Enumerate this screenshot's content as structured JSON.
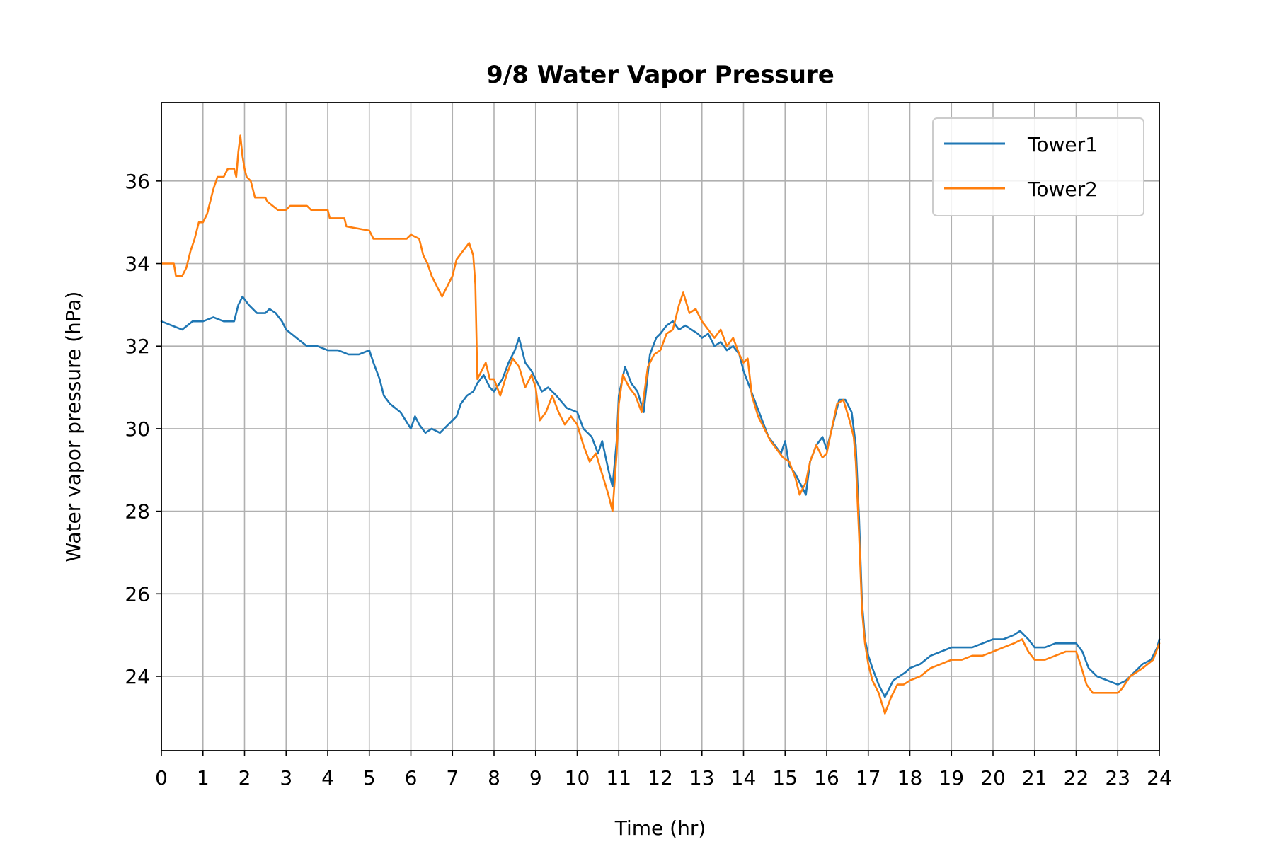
{
  "chart_data": {
    "type": "line",
    "title": "9/8 Water Vapor Pressure",
    "xlabel": "Time (hr)",
    "ylabel": "Water vapor pressure (hPa)",
    "xlim": [
      0,
      24
    ],
    "ylim": [
      22.2,
      37.9
    ],
    "xticks": [
      "0",
      "1",
      "2",
      "3",
      "4",
      "5",
      "6",
      "7",
      "8",
      "9",
      "10",
      "11",
      "12",
      "13",
      "14",
      "15",
      "16",
      "17",
      "18",
      "19",
      "20",
      "21",
      "22",
      "23",
      "24"
    ],
    "yticks": [
      "24",
      "26",
      "28",
      "30",
      "32",
      "34",
      "36"
    ],
    "grid": true,
    "legend_position": "top-right",
    "series": [
      {
        "name": "Tower1",
        "color": "#1f77b4",
        "points": [
          [
            0.0,
            32.6
          ],
          [
            0.25,
            32.5
          ],
          [
            0.5,
            32.4
          ],
          [
            0.75,
            32.6
          ],
          [
            1.0,
            32.6
          ],
          [
            1.25,
            32.7
          ],
          [
            1.5,
            32.6
          ],
          [
            1.75,
            32.6
          ],
          [
            1.85,
            33.0
          ],
          [
            1.95,
            33.2
          ],
          [
            2.1,
            33.0
          ],
          [
            2.3,
            32.8
          ],
          [
            2.5,
            32.8
          ],
          [
            2.6,
            32.9
          ],
          [
            2.75,
            32.8
          ],
          [
            2.9,
            32.6
          ],
          [
            3.0,
            32.4
          ],
          [
            3.25,
            32.2
          ],
          [
            3.5,
            32.0
          ],
          [
            3.75,
            32.0
          ],
          [
            4.0,
            31.9
          ],
          [
            4.25,
            31.9
          ],
          [
            4.5,
            31.8
          ],
          [
            4.75,
            31.8
          ],
          [
            5.0,
            31.9
          ],
          [
            5.1,
            31.6
          ],
          [
            5.25,
            31.2
          ],
          [
            5.35,
            30.8
          ],
          [
            5.5,
            30.6
          ],
          [
            5.75,
            30.4
          ],
          [
            6.0,
            30.0
          ],
          [
            6.1,
            30.3
          ],
          [
            6.2,
            30.1
          ],
          [
            6.35,
            29.9
          ],
          [
            6.5,
            30.0
          ],
          [
            6.7,
            29.9
          ],
          [
            6.9,
            30.1
          ],
          [
            7.1,
            30.3
          ],
          [
            7.2,
            30.6
          ],
          [
            7.35,
            30.8
          ],
          [
            7.5,
            30.9
          ],
          [
            7.6,
            31.1
          ],
          [
            7.75,
            31.3
          ],
          [
            7.9,
            31.0
          ],
          [
            8.0,
            30.9
          ],
          [
            8.2,
            31.2
          ],
          [
            8.35,
            31.6
          ],
          [
            8.5,
            31.9
          ],
          [
            8.6,
            32.2
          ],
          [
            8.75,
            31.6
          ],
          [
            8.9,
            31.4
          ],
          [
            9.0,
            31.2
          ],
          [
            9.15,
            30.9
          ],
          [
            9.3,
            31.0
          ],
          [
            9.5,
            30.8
          ],
          [
            9.75,
            30.5
          ],
          [
            10.0,
            30.4
          ],
          [
            10.15,
            30.0
          ],
          [
            10.35,
            29.8
          ],
          [
            10.5,
            29.4
          ],
          [
            10.6,
            29.7
          ],
          [
            10.75,
            29.0
          ],
          [
            10.85,
            28.6
          ],
          [
            10.95,
            29.7
          ],
          [
            11.0,
            30.8
          ],
          [
            11.15,
            31.5
          ],
          [
            11.3,
            31.1
          ],
          [
            11.45,
            30.9
          ],
          [
            11.6,
            30.4
          ],
          [
            11.75,
            31.8
          ],
          [
            11.9,
            32.2
          ],
          [
            12.0,
            32.3
          ],
          [
            12.15,
            32.5
          ],
          [
            12.3,
            32.6
          ],
          [
            12.45,
            32.4
          ],
          [
            12.6,
            32.5
          ],
          [
            12.75,
            32.4
          ],
          [
            12.9,
            32.3
          ],
          [
            13.0,
            32.2
          ],
          [
            13.15,
            32.3
          ],
          [
            13.3,
            32.0
          ],
          [
            13.45,
            32.1
          ],
          [
            13.6,
            31.9
          ],
          [
            13.75,
            32.0
          ],
          [
            13.9,
            31.8
          ],
          [
            14.0,
            31.4
          ],
          [
            14.15,
            31.0
          ],
          [
            14.3,
            30.6
          ],
          [
            14.45,
            30.2
          ],
          [
            14.6,
            29.8
          ],
          [
            14.75,
            29.6
          ],
          [
            14.9,
            29.4
          ],
          [
            15.0,
            29.7
          ],
          [
            15.1,
            29.1
          ],
          [
            15.25,
            28.9
          ],
          [
            15.4,
            28.6
          ],
          [
            15.5,
            28.4
          ],
          [
            15.6,
            29.2
          ],
          [
            15.75,
            29.6
          ],
          [
            15.9,
            29.8
          ],
          [
            16.0,
            29.5
          ],
          [
            16.1,
            29.9
          ],
          [
            16.3,
            30.7
          ],
          [
            16.45,
            30.7
          ],
          [
            16.6,
            30.4
          ],
          [
            16.7,
            29.6
          ],
          [
            16.78,
            27.8
          ],
          [
            16.85,
            25.8
          ],
          [
            16.92,
            24.9
          ],
          [
            17.0,
            24.5
          ],
          [
            17.1,
            24.2
          ],
          [
            17.25,
            23.8
          ],
          [
            17.4,
            23.5
          ],
          [
            17.5,
            23.7
          ],
          [
            17.6,
            23.9
          ],
          [
            17.75,
            24.0
          ],
          [
            17.9,
            24.1
          ],
          [
            18.0,
            24.2
          ],
          [
            18.25,
            24.3
          ],
          [
            18.5,
            24.5
          ],
          [
            18.75,
            24.6
          ],
          [
            19.0,
            24.7
          ],
          [
            19.25,
            24.7
          ],
          [
            19.5,
            24.7
          ],
          [
            19.75,
            24.8
          ],
          [
            20.0,
            24.9
          ],
          [
            20.25,
            24.9
          ],
          [
            20.5,
            25.0
          ],
          [
            20.65,
            25.1
          ],
          [
            20.85,
            24.9
          ],
          [
            21.0,
            24.7
          ],
          [
            21.25,
            24.7
          ],
          [
            21.5,
            24.8
          ],
          [
            21.75,
            24.8
          ],
          [
            22.0,
            24.8
          ],
          [
            22.15,
            24.6
          ],
          [
            22.3,
            24.2
          ],
          [
            22.5,
            24.0
          ],
          [
            22.75,
            23.9
          ],
          [
            23.0,
            23.8
          ],
          [
            23.2,
            23.9
          ],
          [
            23.4,
            24.1
          ],
          [
            23.6,
            24.3
          ],
          [
            23.8,
            24.4
          ],
          [
            23.95,
            24.7
          ],
          [
            24.0,
            24.9
          ]
        ]
      },
      {
        "name": "Tower2",
        "color": "#ff7f0e",
        "points": [
          [
            0.0,
            34.0
          ],
          [
            0.3,
            34.0
          ],
          [
            0.35,
            33.7
          ],
          [
            0.5,
            33.7
          ],
          [
            0.6,
            33.9
          ],
          [
            0.7,
            34.3
          ],
          [
            0.8,
            34.6
          ],
          [
            0.9,
            35.0
          ],
          [
            1.0,
            35.0
          ],
          [
            1.1,
            35.2
          ],
          [
            1.25,
            35.8
          ],
          [
            1.35,
            36.1
          ],
          [
            1.5,
            36.1
          ],
          [
            1.6,
            36.3
          ],
          [
            1.75,
            36.3
          ],
          [
            1.8,
            36.1
          ],
          [
            1.85,
            36.7
          ],
          [
            1.9,
            37.1
          ],
          [
            1.95,
            36.6
          ],
          [
            2.0,
            36.3
          ],
          [
            2.05,
            36.1
          ],
          [
            2.15,
            36.0
          ],
          [
            2.25,
            35.6
          ],
          [
            2.5,
            35.6
          ],
          [
            2.55,
            35.5
          ],
          [
            2.8,
            35.3
          ],
          [
            3.0,
            35.3
          ],
          [
            3.1,
            35.4
          ],
          [
            3.5,
            35.4
          ],
          [
            3.6,
            35.3
          ],
          [
            4.0,
            35.3
          ],
          [
            4.05,
            35.1
          ],
          [
            4.4,
            35.1
          ],
          [
            4.45,
            34.9
          ],
          [
            5.0,
            34.8
          ],
          [
            5.1,
            34.6
          ],
          [
            5.9,
            34.6
          ],
          [
            6.0,
            34.7
          ],
          [
            6.2,
            34.6
          ],
          [
            6.3,
            34.2
          ],
          [
            6.4,
            34.0
          ],
          [
            6.5,
            33.7
          ],
          [
            6.6,
            33.5
          ],
          [
            6.75,
            33.2
          ],
          [
            6.9,
            33.5
          ],
          [
            7.0,
            33.7
          ],
          [
            7.1,
            34.1
          ],
          [
            7.25,
            34.3
          ],
          [
            7.4,
            34.5
          ],
          [
            7.5,
            34.2
          ],
          [
            7.55,
            33.5
          ],
          [
            7.6,
            31.2
          ],
          [
            7.7,
            31.4
          ],
          [
            7.8,
            31.6
          ],
          [
            7.9,
            31.2
          ],
          [
            8.0,
            31.2
          ],
          [
            8.15,
            30.8
          ],
          [
            8.3,
            31.3
          ],
          [
            8.45,
            31.7
          ],
          [
            8.6,
            31.5
          ],
          [
            8.75,
            31.0
          ],
          [
            8.9,
            31.3
          ],
          [
            9.0,
            31.0
          ],
          [
            9.1,
            30.2
          ],
          [
            9.25,
            30.4
          ],
          [
            9.4,
            30.8
          ],
          [
            9.55,
            30.4
          ],
          [
            9.7,
            30.1
          ],
          [
            9.85,
            30.3
          ],
          [
            10.0,
            30.1
          ],
          [
            10.15,
            29.6
          ],
          [
            10.3,
            29.2
          ],
          [
            10.45,
            29.4
          ],
          [
            10.6,
            28.9
          ],
          [
            10.75,
            28.4
          ],
          [
            10.85,
            28.0
          ],
          [
            10.95,
            29.4
          ],
          [
            11.0,
            30.6
          ],
          [
            11.1,
            31.3
          ],
          [
            11.25,
            31.0
          ],
          [
            11.4,
            30.8
          ],
          [
            11.55,
            30.4
          ],
          [
            11.7,
            31.5
          ],
          [
            11.85,
            31.8
          ],
          [
            12.0,
            31.9
          ],
          [
            12.15,
            32.3
          ],
          [
            12.3,
            32.4
          ],
          [
            12.45,
            33.0
          ],
          [
            12.55,
            33.3
          ],
          [
            12.7,
            32.8
          ],
          [
            12.85,
            32.9
          ],
          [
            13.0,
            32.6
          ],
          [
            13.15,
            32.4
          ],
          [
            13.3,
            32.2
          ],
          [
            13.45,
            32.4
          ],
          [
            13.6,
            32.0
          ],
          [
            13.75,
            32.2
          ],
          [
            13.9,
            31.8
          ],
          [
            14.0,
            31.6
          ],
          [
            14.1,
            31.7
          ],
          [
            14.2,
            30.8
          ],
          [
            14.35,
            30.3
          ],
          [
            14.5,
            30.0
          ],
          [
            14.65,
            29.7
          ],
          [
            14.8,
            29.5
          ],
          [
            14.95,
            29.3
          ],
          [
            15.1,
            29.2
          ],
          [
            15.25,
            28.8
          ],
          [
            15.35,
            28.4
          ],
          [
            15.5,
            28.7
          ],
          [
            15.6,
            29.2
          ],
          [
            15.75,
            29.6
          ],
          [
            15.9,
            29.3
          ],
          [
            16.0,
            29.4
          ],
          [
            16.1,
            29.9
          ],
          [
            16.25,
            30.6
          ],
          [
            16.4,
            30.7
          ],
          [
            16.55,
            30.2
          ],
          [
            16.65,
            29.8
          ],
          [
            16.7,
            29.2
          ],
          [
            16.78,
            27.4
          ],
          [
            16.85,
            25.6
          ],
          [
            16.92,
            24.8
          ],
          [
            17.0,
            24.3
          ],
          [
            17.1,
            23.9
          ],
          [
            17.25,
            23.6
          ],
          [
            17.4,
            23.1
          ],
          [
            17.55,
            23.5
          ],
          [
            17.7,
            23.8
          ],
          [
            17.85,
            23.8
          ],
          [
            18.0,
            23.9
          ],
          [
            18.25,
            24.0
          ],
          [
            18.5,
            24.2
          ],
          [
            18.75,
            24.3
          ],
          [
            19.0,
            24.4
          ],
          [
            19.25,
            24.4
          ],
          [
            19.5,
            24.5
          ],
          [
            19.75,
            24.5
          ],
          [
            20.0,
            24.6
          ],
          [
            20.25,
            24.7
          ],
          [
            20.5,
            24.8
          ],
          [
            20.7,
            24.9
          ],
          [
            20.85,
            24.6
          ],
          [
            21.0,
            24.4
          ],
          [
            21.25,
            24.4
          ],
          [
            21.5,
            24.5
          ],
          [
            21.75,
            24.6
          ],
          [
            22.0,
            24.6
          ],
          [
            22.1,
            24.3
          ],
          [
            22.25,
            23.8
          ],
          [
            22.4,
            23.6
          ],
          [
            22.75,
            23.6
          ],
          [
            23.0,
            23.6
          ],
          [
            23.1,
            23.7
          ],
          [
            23.3,
            24.0
          ],
          [
            23.6,
            24.2
          ],
          [
            23.85,
            24.4
          ],
          [
            24.0,
            24.8
          ]
        ]
      }
    ]
  }
}
